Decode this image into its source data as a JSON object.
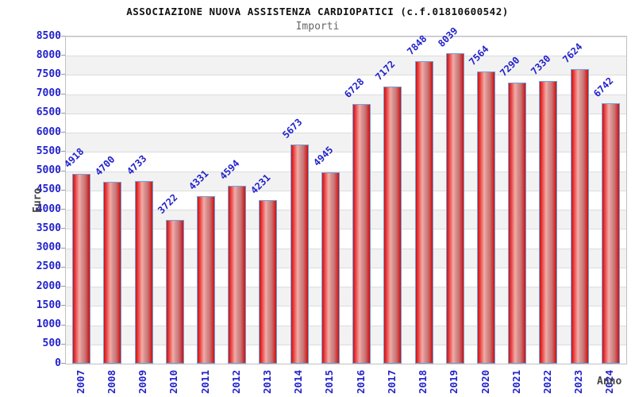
{
  "chart_data": {
    "type": "bar",
    "title": "ASSOCIAZIONE NUOVA ASSISTENZA CARDIOPATICI (c.f.01810600542)",
    "subtitle": "Importi",
    "xlabel": "Anno",
    "ylabel": "Euro",
    "categories": [
      "2007",
      "2008",
      "2009",
      "2010",
      "2011",
      "2012",
      "2013",
      "2014",
      "2015",
      "2016",
      "2017",
      "2018",
      "2019",
      "2020",
      "2021",
      "2022",
      "2023",
      "2024"
    ],
    "values": [
      4918,
      4700,
      4733,
      3722,
      4331,
      4594,
      4231,
      5673,
      4945,
      6728,
      7172,
      7848,
      8039,
      7564,
      7290,
      7330,
      7624,
      6742
    ],
    "ylim": [
      0,
      8500
    ],
    "ytick_step": 500,
    "grid": true,
    "legend": "none",
    "colors": {
      "bar_fill": "#d01010",
      "bar_highlight": "#f3aba6",
      "bar_border": "#6fa3dc",
      "tick_text": "#2222cc",
      "title_text": "#111111",
      "subtitle_text": "#666666",
      "axis_label_text": "#444444",
      "band_alt": "#f2f2f2",
      "gridline": "#dcdcdc",
      "plot_border": "#c0c0c0"
    }
  }
}
